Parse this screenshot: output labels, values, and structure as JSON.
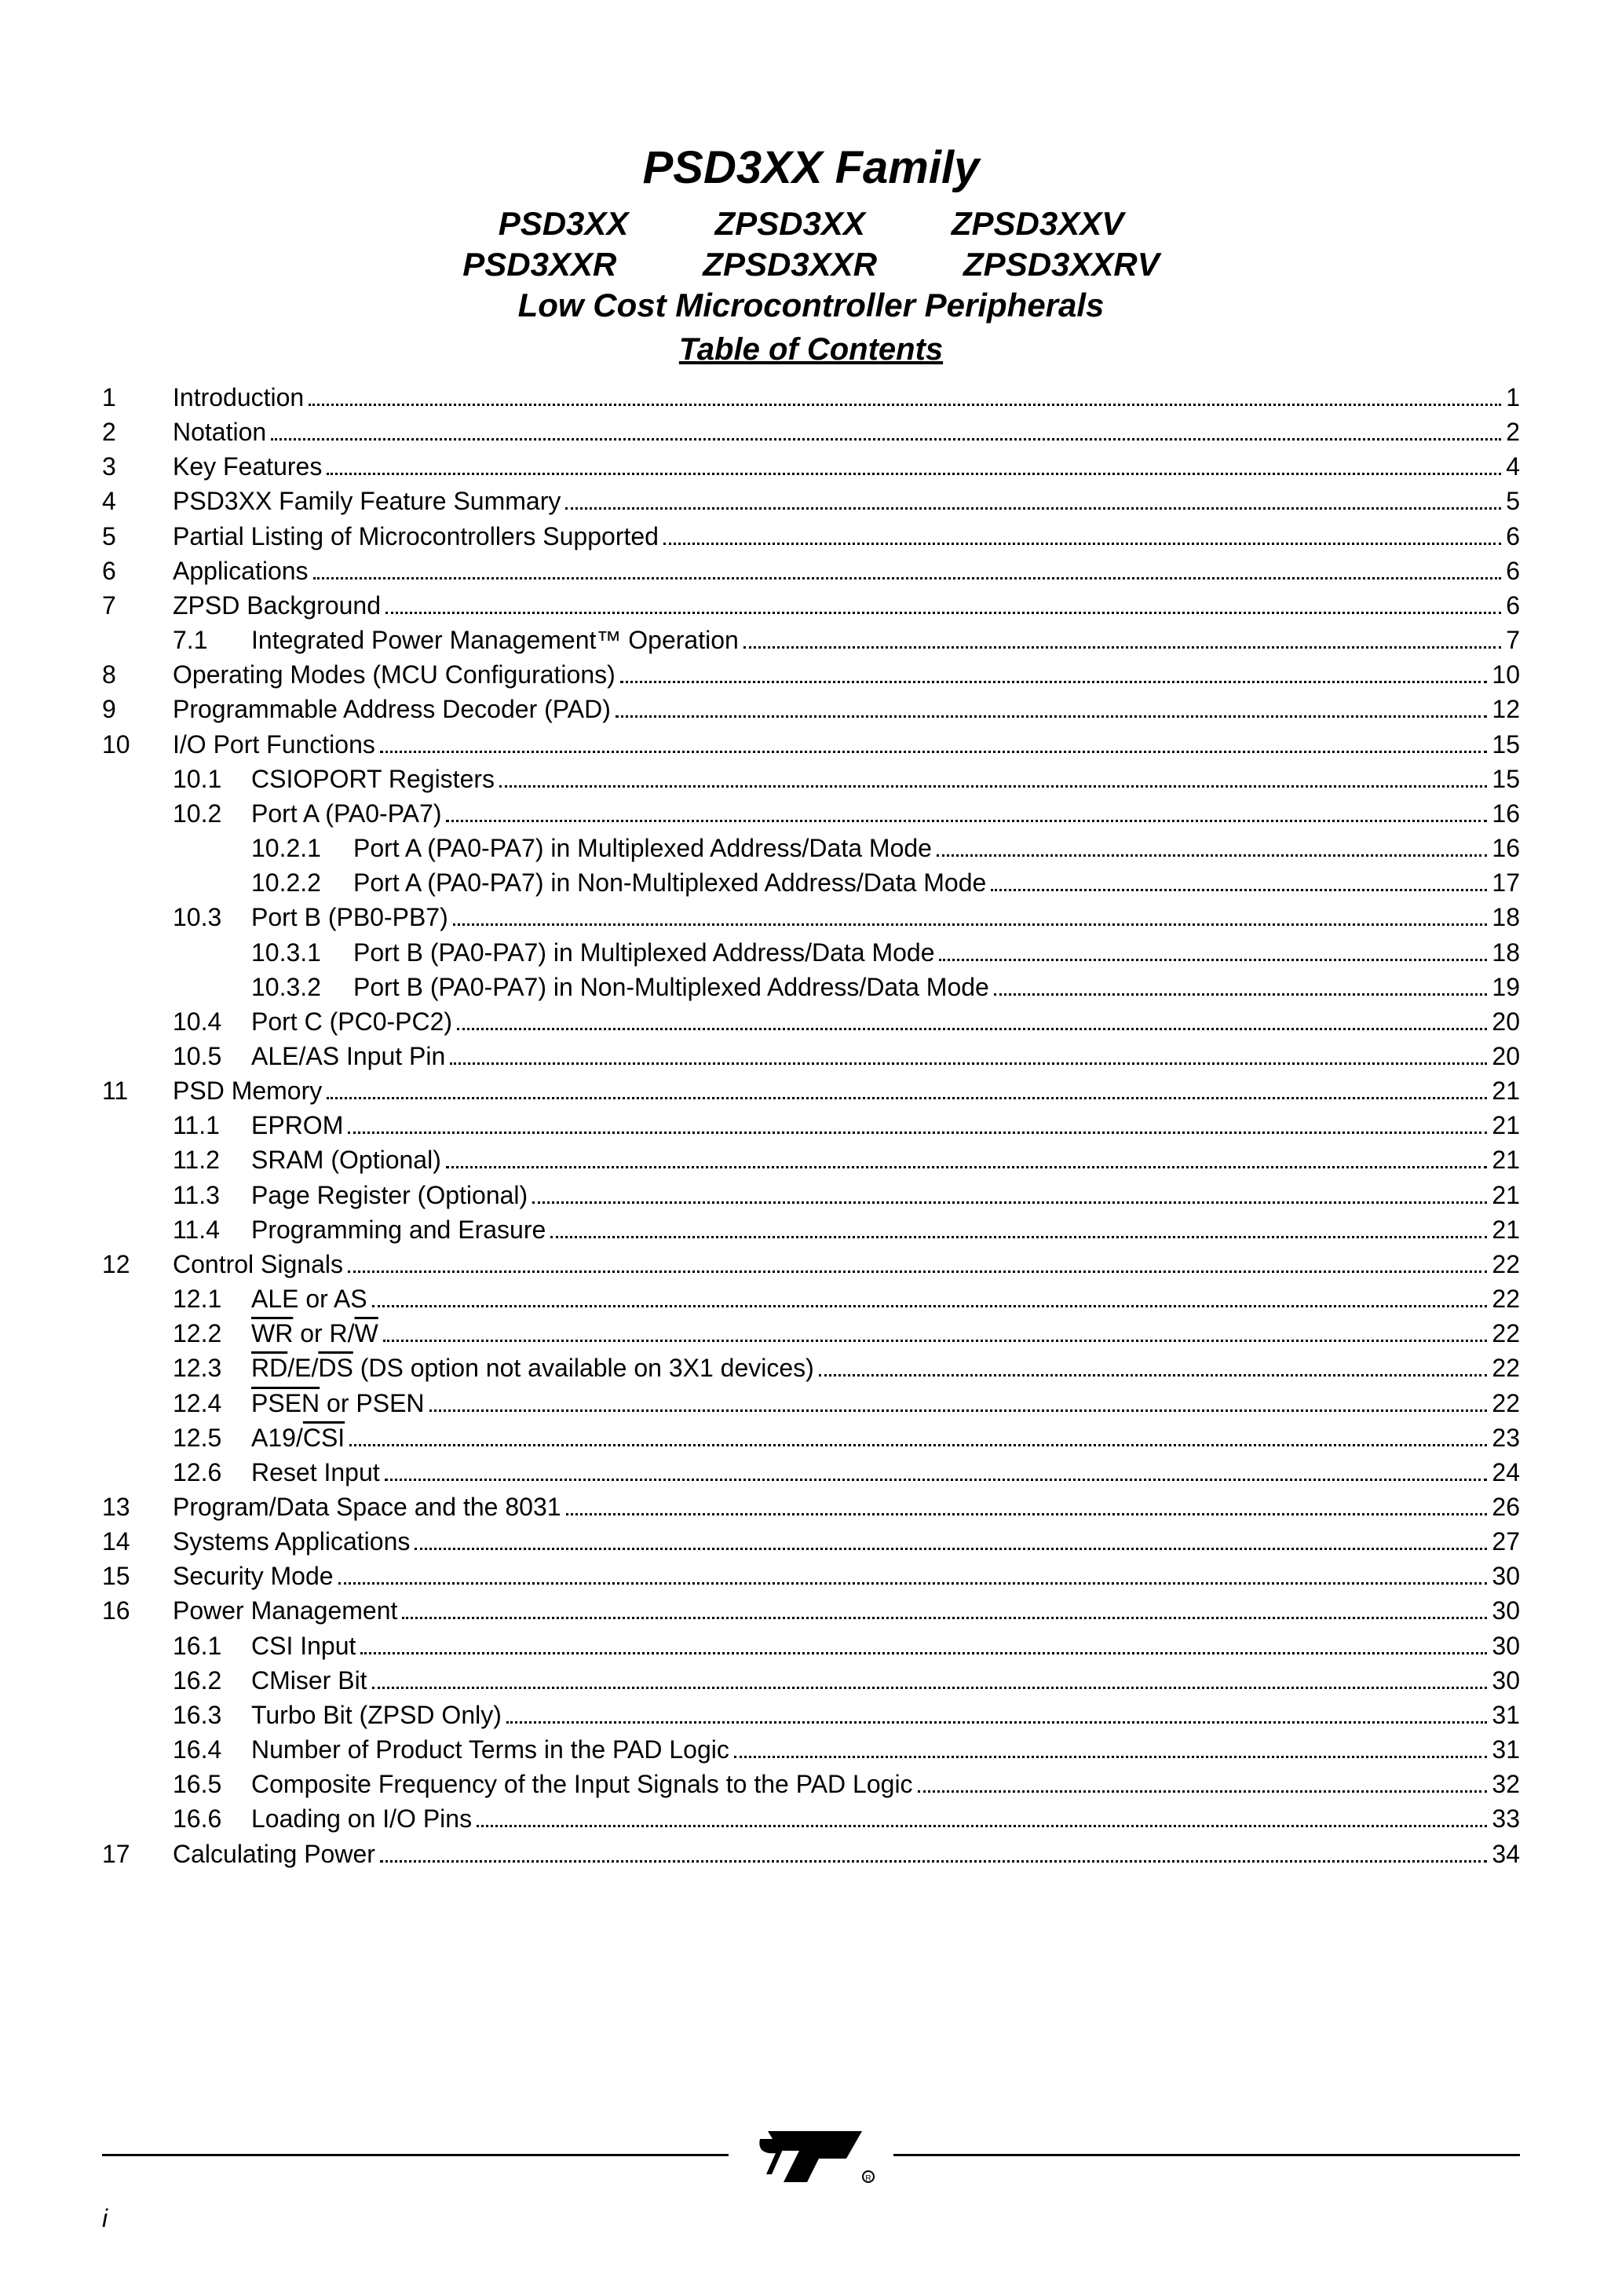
{
  "header": {
    "title": "PSD3XX Family",
    "row1": [
      "PSD3XX",
      "ZPSD3XX",
      "ZPSD3XXV"
    ],
    "row2": [
      "PSD3XXR",
      "ZPSD3XXR",
      "ZPSD3XXRV"
    ],
    "subtitle": "Low Cost Microcontroller Peripherals",
    "toc_title": "Table of Contents"
  },
  "toc": [
    {
      "n": "1",
      "t": "Introduction",
      "p": "1",
      "lvl": 0
    },
    {
      "n": "2",
      "t": "Notation",
      "p": "2",
      "lvl": 0
    },
    {
      "n": "3",
      "t": "Key Features",
      "p": "4",
      "lvl": 0
    },
    {
      "n": "4",
      "t": "PSD3XX Family Feature Summary",
      "p": "5",
      "lvl": 0
    },
    {
      "n": "5",
      "t": "Partial Listing of Microcontrollers Supported",
      "p": "6",
      "lvl": 0
    },
    {
      "n": "6",
      "t": "Applications",
      "p": "6",
      "lvl": 0
    },
    {
      "n": "7",
      "t": "ZPSD Background",
      "p": "6",
      "lvl": 0
    },
    {
      "n": "7.1",
      "t": "Integrated Power Management™ Operation",
      "p": "7",
      "lvl": 1
    },
    {
      "n": "8",
      "t": "Operating Modes (MCU Configurations)",
      "p": "10",
      "lvl": 0
    },
    {
      "n": "9",
      "t": "Programmable Address Decoder (PAD)",
      "p": "12",
      "lvl": 0
    },
    {
      "n": "10",
      "t": "I/O Port Functions",
      "p": "15",
      "lvl": 0
    },
    {
      "n": "10.1",
      "t": "CSIOPORT Registers",
      "p": "15",
      "lvl": 1
    },
    {
      "n": "10.2",
      "t": "Port A (PA0-PA7)",
      "p": "16",
      "lvl": 1
    },
    {
      "n": "10.2.1",
      "t": "Port A (PA0-PA7) in Multiplexed Address/Data Mode",
      "p": "16",
      "lvl": 2
    },
    {
      "n": "10.2.2",
      "t": "Port A (PA0-PA7) in Non-Multiplexed Address/Data Mode",
      "p": "17",
      "lvl": 2
    },
    {
      "n": "10.3",
      "t": "Port B (PB0-PB7)",
      "p": "18",
      "lvl": 1
    },
    {
      "n": "10.3.1",
      "t": "Port B (PA0-PA7) in Multiplexed Address/Data Mode",
      "p": "18",
      "lvl": 2
    },
    {
      "n": "10.3.2",
      "t": "Port B (PA0-PA7) in Non-Multiplexed Address/Data Mode",
      "p": "19",
      "lvl": 2
    },
    {
      "n": "10.4",
      "t": "Port C (PC0-PC2)",
      "p": "20",
      "lvl": 1
    },
    {
      "n": "10.5",
      "t": "ALE/AS Input Pin",
      "p": "20",
      "lvl": 1
    },
    {
      "n": "11",
      "t": "PSD Memory",
      "p": "21",
      "lvl": 0
    },
    {
      "n": "11.1",
      "t": "EPROM",
      "p": "21",
      "lvl": 1
    },
    {
      "n": "11.2",
      "t": "SRAM (Optional)",
      "p": "21",
      "lvl": 1
    },
    {
      "n": "11.3",
      "t": "Page Register (Optional)",
      "p": "21",
      "lvl": 1
    },
    {
      "n": "11.4",
      "t": "Programming and Erasure",
      "p": "21",
      "lvl": 1
    },
    {
      "n": "12",
      "t": "Control Signals",
      "p": "22",
      "lvl": 0
    },
    {
      "n": "12.1",
      "t": "ALE or AS",
      "p": "22",
      "lvl": 1
    },
    {
      "n": "12.2",
      "html": "<span class='overline'>WR</span> or R/<span class='overline'>W</span>",
      "p": "22",
      "lvl": 1
    },
    {
      "n": "12.3",
      "html": "<span class='overline'>RD</span>/E/<span class='overline'>DS</span> (DS option not available on 3X1 devices)",
      "p": "22",
      "lvl": 1
    },
    {
      "n": "12.4",
      "html": "<span class='overline'>PSEN</span> or PSEN",
      "p": "22",
      "lvl": 1
    },
    {
      "n": "12.5",
      "html": "A19/<span class='overline'>CSI</span>",
      "p": "23",
      "lvl": 1
    },
    {
      "n": "12.6",
      "t": "Reset Input",
      "p": "24",
      "lvl": 1
    },
    {
      "n": "13",
      "t": "Program/Data Space and the 8031",
      "p": "26",
      "lvl": 0
    },
    {
      "n": "14",
      "t": "Systems Applications",
      "p": "27",
      "lvl": 0
    },
    {
      "n": "15",
      "t": "Security Mode",
      "p": "30",
      "lvl": 0
    },
    {
      "n": "16",
      "t": "Power Management",
      "p": "30",
      "lvl": 0
    },
    {
      "n": "16.1",
      "t": "CSI Input",
      "p": "30",
      "lvl": 1
    },
    {
      "n": "16.2",
      "t": "CMiser Bit",
      "p": "30",
      "lvl": 1
    },
    {
      "n": "16.3",
      "t": "Turbo Bit (ZPSD Only)",
      "p": "31",
      "lvl": 1
    },
    {
      "n": "16.4",
      "t": "Number of Product Terms in the PAD Logic",
      "p": "31",
      "lvl": 1
    },
    {
      "n": "16.5",
      "t": "Composite Frequency of the Input Signals to the PAD Logic",
      "p": "32",
      "lvl": 1
    },
    {
      "n": "16.6",
      "t": "Loading on I/O Pins",
      "p": "33",
      "lvl": 1
    },
    {
      "n": "17",
      "t": "Calculating Power",
      "p": "34",
      "lvl": 0
    }
  ],
  "footer": {
    "page_num": "i"
  },
  "style": {
    "text_color": "#000000",
    "background_color": "#ffffff",
    "title_fontsize": 58,
    "subtitle_fontsize": 42,
    "body_fontsize": 32,
    "line_height": 1.38,
    "rule_weight": 3
  }
}
